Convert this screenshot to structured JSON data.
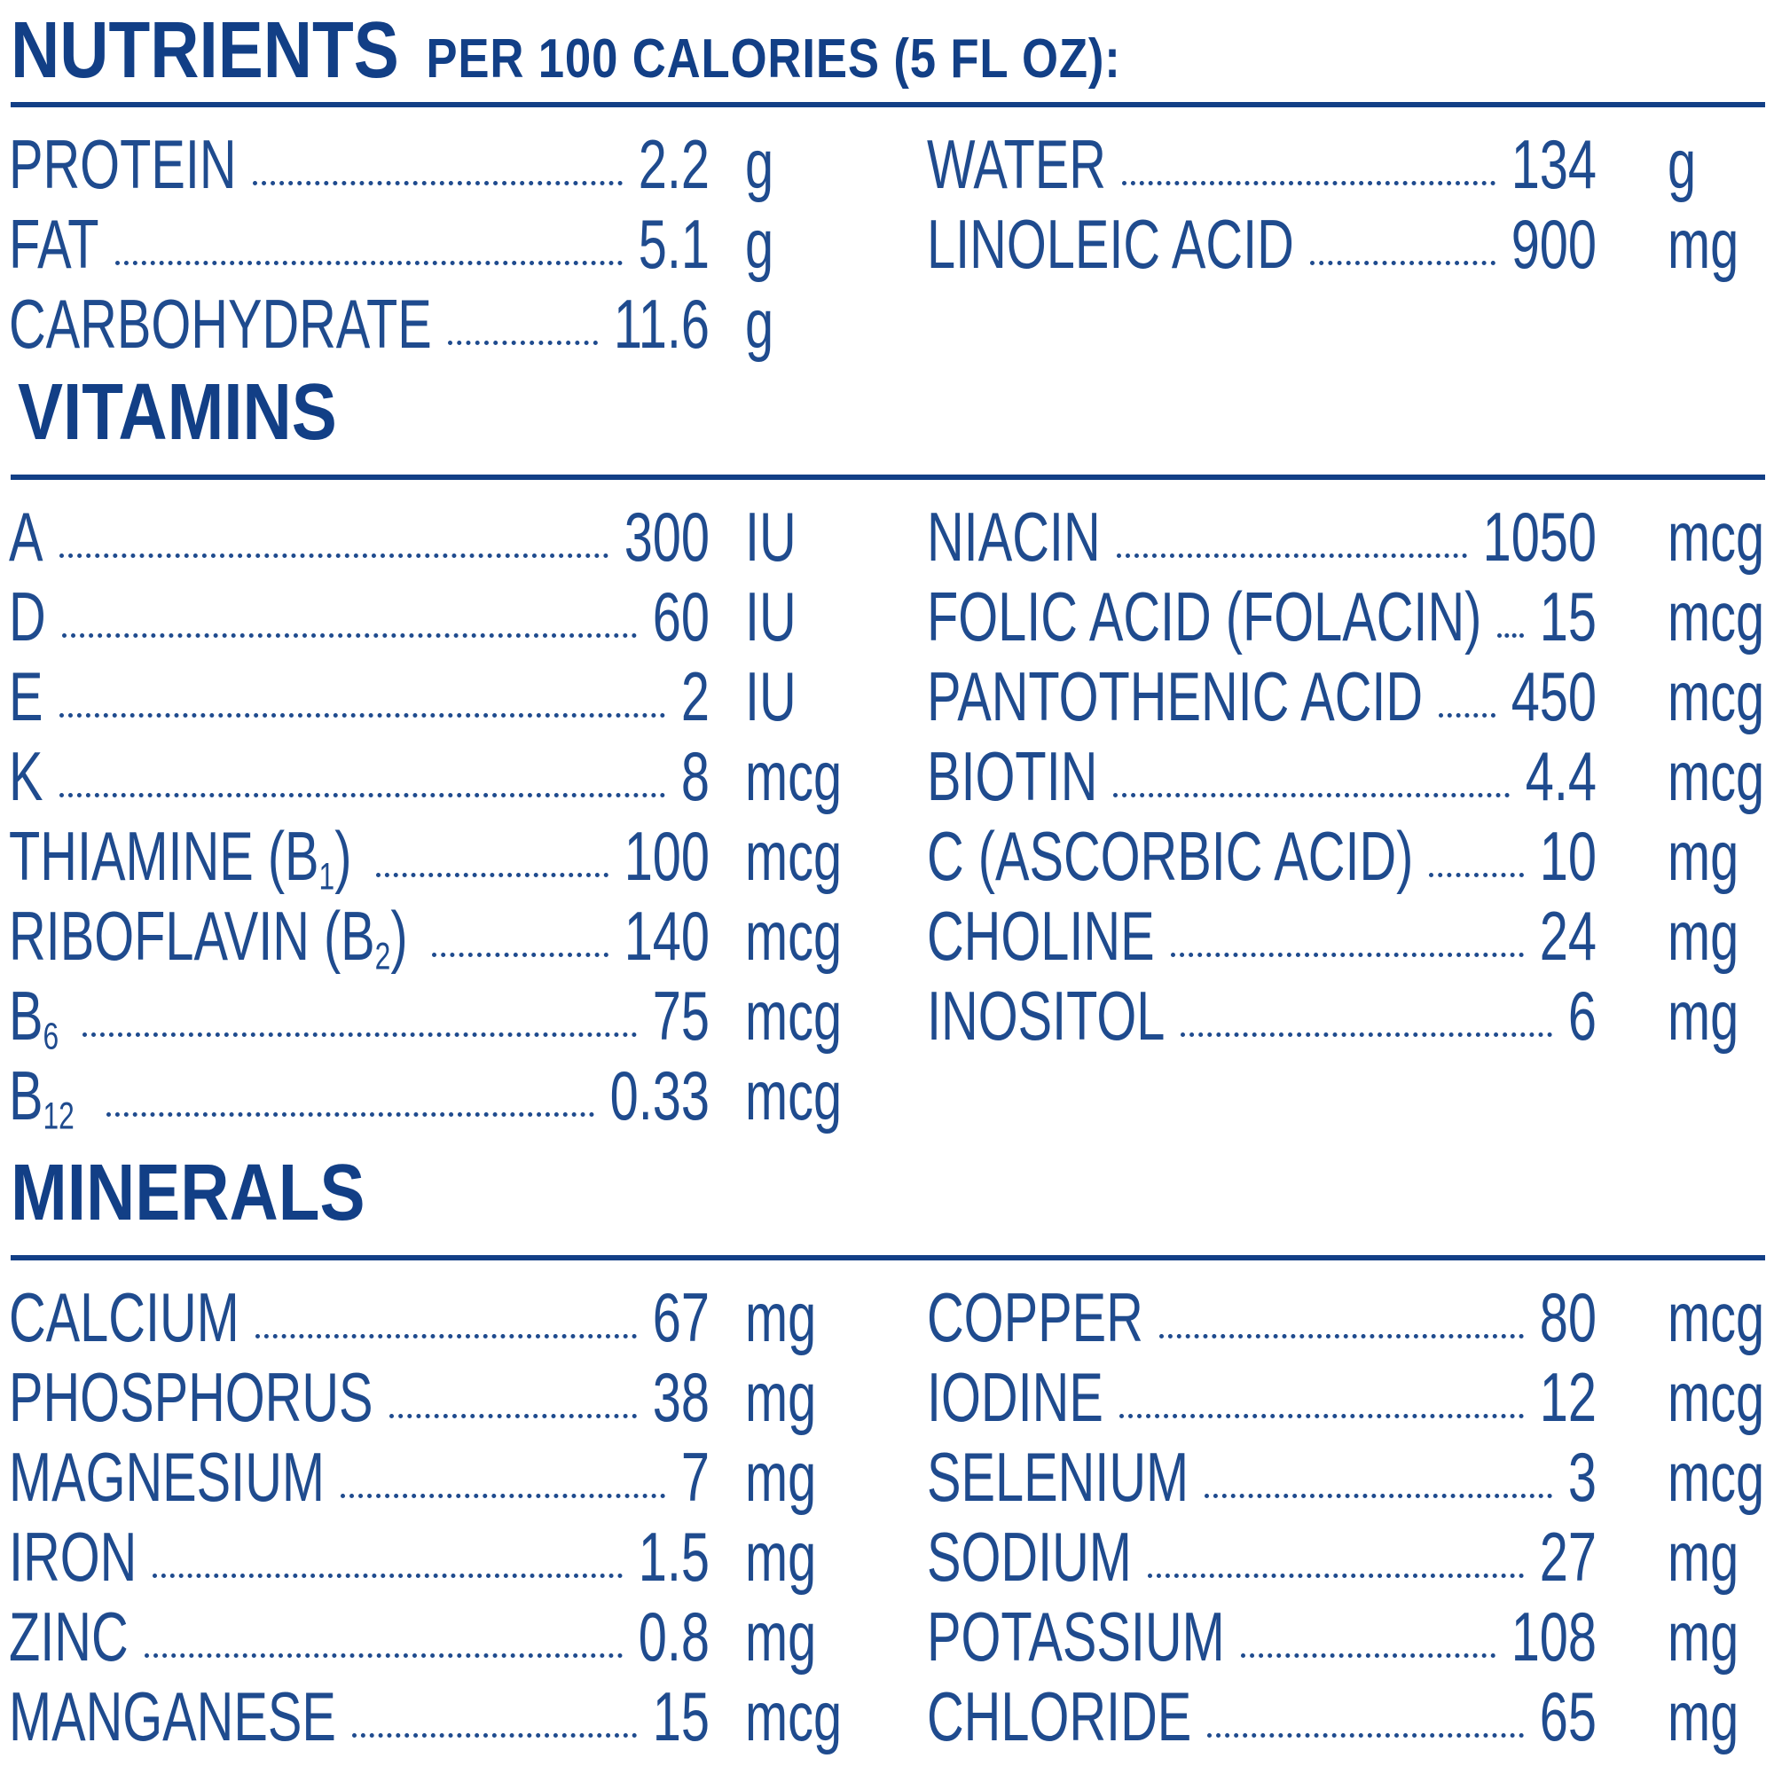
{
  "nutrients": {
    "title": "NUTRIENTS",
    "subtitle": "PER 100 CALORIES (5 FL OZ):",
    "rows": [
      {
        "left": {
          "name": "PROTEIN",
          "value": "2.2",
          "unit": "g"
        },
        "right": {
          "name": "WATER",
          "value": "134",
          "unit": "g"
        }
      },
      {
        "left": {
          "name": "FAT",
          "value": "5.1",
          "unit": "g"
        },
        "right": {
          "name": "LINOLEIC ACID",
          "value": "900",
          "unit": "mg"
        }
      },
      {
        "left": {
          "name": "CARBOHYDRATE",
          "value": "11.6",
          "unit": "g"
        }
      }
    ]
  },
  "vitamins": {
    "title": "VITAMINS",
    "rows": [
      {
        "left": {
          "name": "A",
          "value": "300",
          "unit": "IU"
        },
        "right": {
          "name": "NIACIN",
          "value": "1050",
          "unit": "mcg"
        }
      },
      {
        "left": {
          "name": "D",
          "value": "60",
          "unit": "IU"
        },
        "right": {
          "name": "FOLIC ACID (FOLACIN)",
          "value": "15",
          "unit": "mcg"
        }
      },
      {
        "left": {
          "name": "E",
          "value": "2",
          "unit": "IU"
        },
        "right": {
          "name": "PANTOTHENIC ACID",
          "value": "450",
          "unit": "mcg"
        }
      },
      {
        "left": {
          "name": "K",
          "value": "8",
          "unit": "mcg"
        },
        "right": {
          "name": "BIOTIN",
          "value": "4.4",
          "unit": "mcg"
        }
      },
      {
        "left": {
          "name": "THIAMINE (B",
          "sub": "1",
          "after": ")",
          "value": "100",
          "unit": "mcg"
        },
        "right": {
          "name": "C (ASCORBIC ACID)",
          "value": "10",
          "unit": "mg"
        }
      },
      {
        "left": {
          "name": "RIBOFLAVIN (B",
          "sub": "2",
          "after": ")",
          "value": "140",
          "unit": "mcg"
        },
        "right": {
          "name": "CHOLINE",
          "value": "24",
          "unit": "mg"
        }
      },
      {
        "left": {
          "name": "B",
          "sub": "6",
          "value": "75",
          "unit": "mcg"
        },
        "right": {
          "name": "INOSITOL",
          "value": "6",
          "unit": "mg"
        }
      },
      {
        "left": {
          "name": "B",
          "sub": "12",
          "value": "0.33",
          "unit": "mcg"
        }
      }
    ]
  },
  "minerals": {
    "title": "MINERALS",
    "rows": [
      {
        "left": {
          "name": "CALCIUM",
          "value": "67",
          "unit": "mg"
        },
        "right": {
          "name": "COPPER",
          "value": "80",
          "unit": "mcg"
        }
      },
      {
        "left": {
          "name": "PHOSPHORUS",
          "value": "38",
          "unit": "mg"
        },
        "right": {
          "name": "IODINE",
          "value": "12",
          "unit": "mcg"
        }
      },
      {
        "left": {
          "name": "MAGNESIUM",
          "value": "7",
          "unit": "mg"
        },
        "right": {
          "name": "SELENIUM",
          "value": "3",
          "unit": "mcg"
        }
      },
      {
        "left": {
          "name": "IRON",
          "value": "1.5",
          "unit": "mg"
        },
        "right": {
          "name": "SODIUM",
          "value": "27",
          "unit": "mg"
        }
      },
      {
        "left": {
          "name": "ZINC",
          "value": "0.8",
          "unit": "mg"
        },
        "right": {
          "name": "POTASSIUM",
          "value": "108",
          "unit": "mg"
        }
      },
      {
        "left": {
          "name": "MANGANESE",
          "value": "15",
          "unit": "mcg"
        },
        "right": {
          "name": "CHLORIDE",
          "value": "65",
          "unit": "mg"
        }
      }
    ]
  }
}
